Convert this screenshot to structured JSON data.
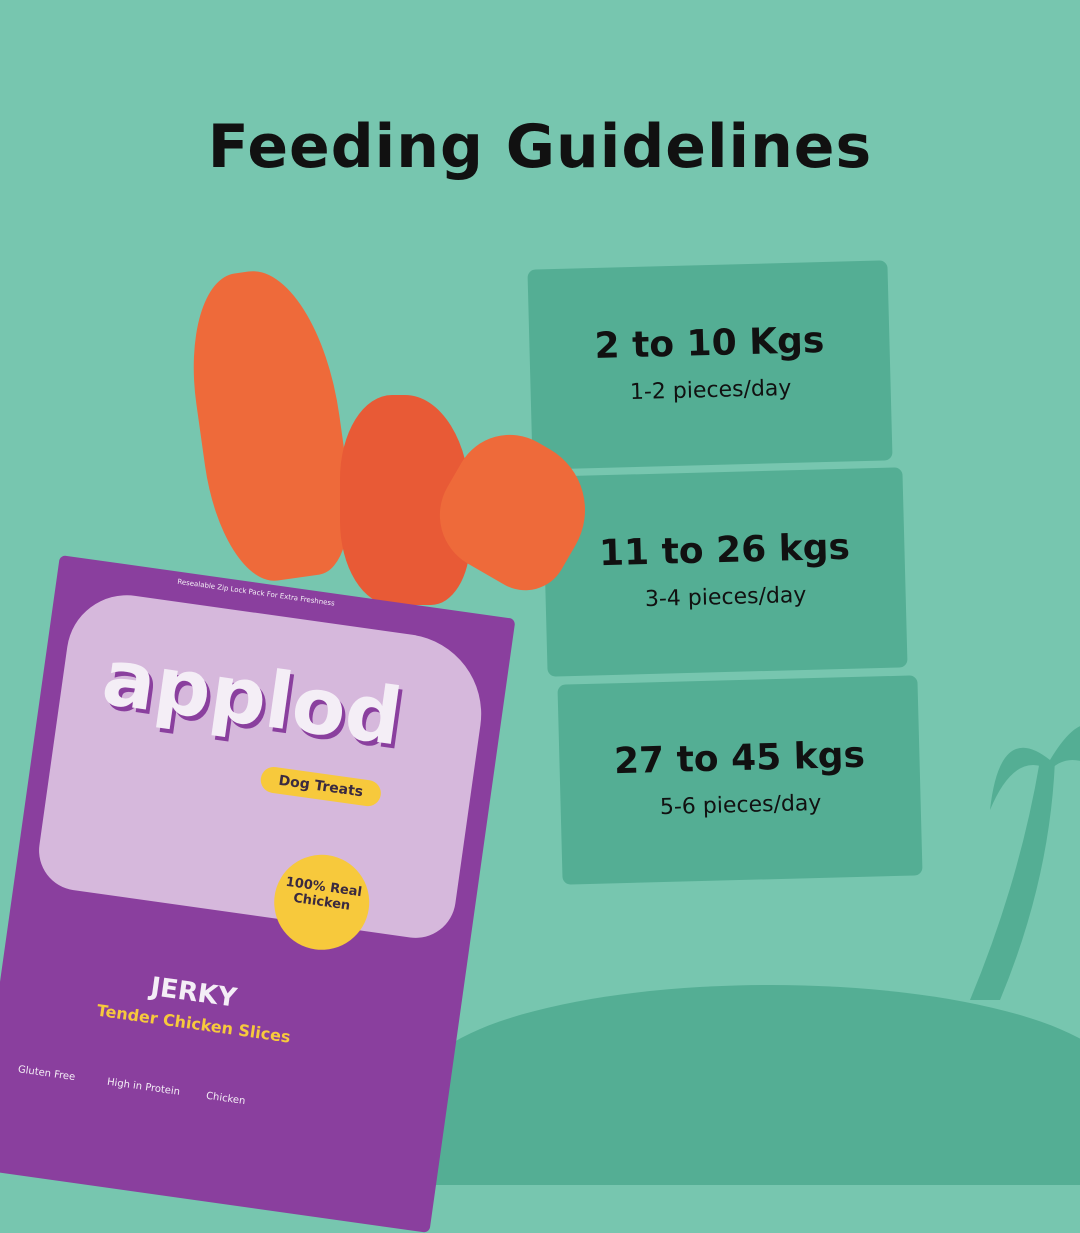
{
  "title": "Feeding Guidelines",
  "guidelines": [
    {
      "weight": "2 to 10 Kgs",
      "amount": "1-2 pieces/day"
    },
    {
      "weight": "11 to 26 kgs",
      "amount": "3-4 pieces/day"
    },
    {
      "weight": "27 to 45 kgs",
      "amount": "5-6 pieces/day"
    }
  ],
  "package": {
    "brand": "applod",
    "zip_note": "Resealable Zip Lock Pack For Extra Freshness",
    "tag": "Dog Treats",
    "claim": "100% Real Chicken",
    "product": "JERKY",
    "subtitle": "Tender Chicken Slices",
    "badges": [
      "Gluten Free",
      "High in Protein",
      "Chicken"
    ]
  },
  "colors": {
    "background": "#77c6af",
    "card": "#54ae94",
    "bag": "#8a3f9e",
    "accent": "#f7c93c"
  }
}
